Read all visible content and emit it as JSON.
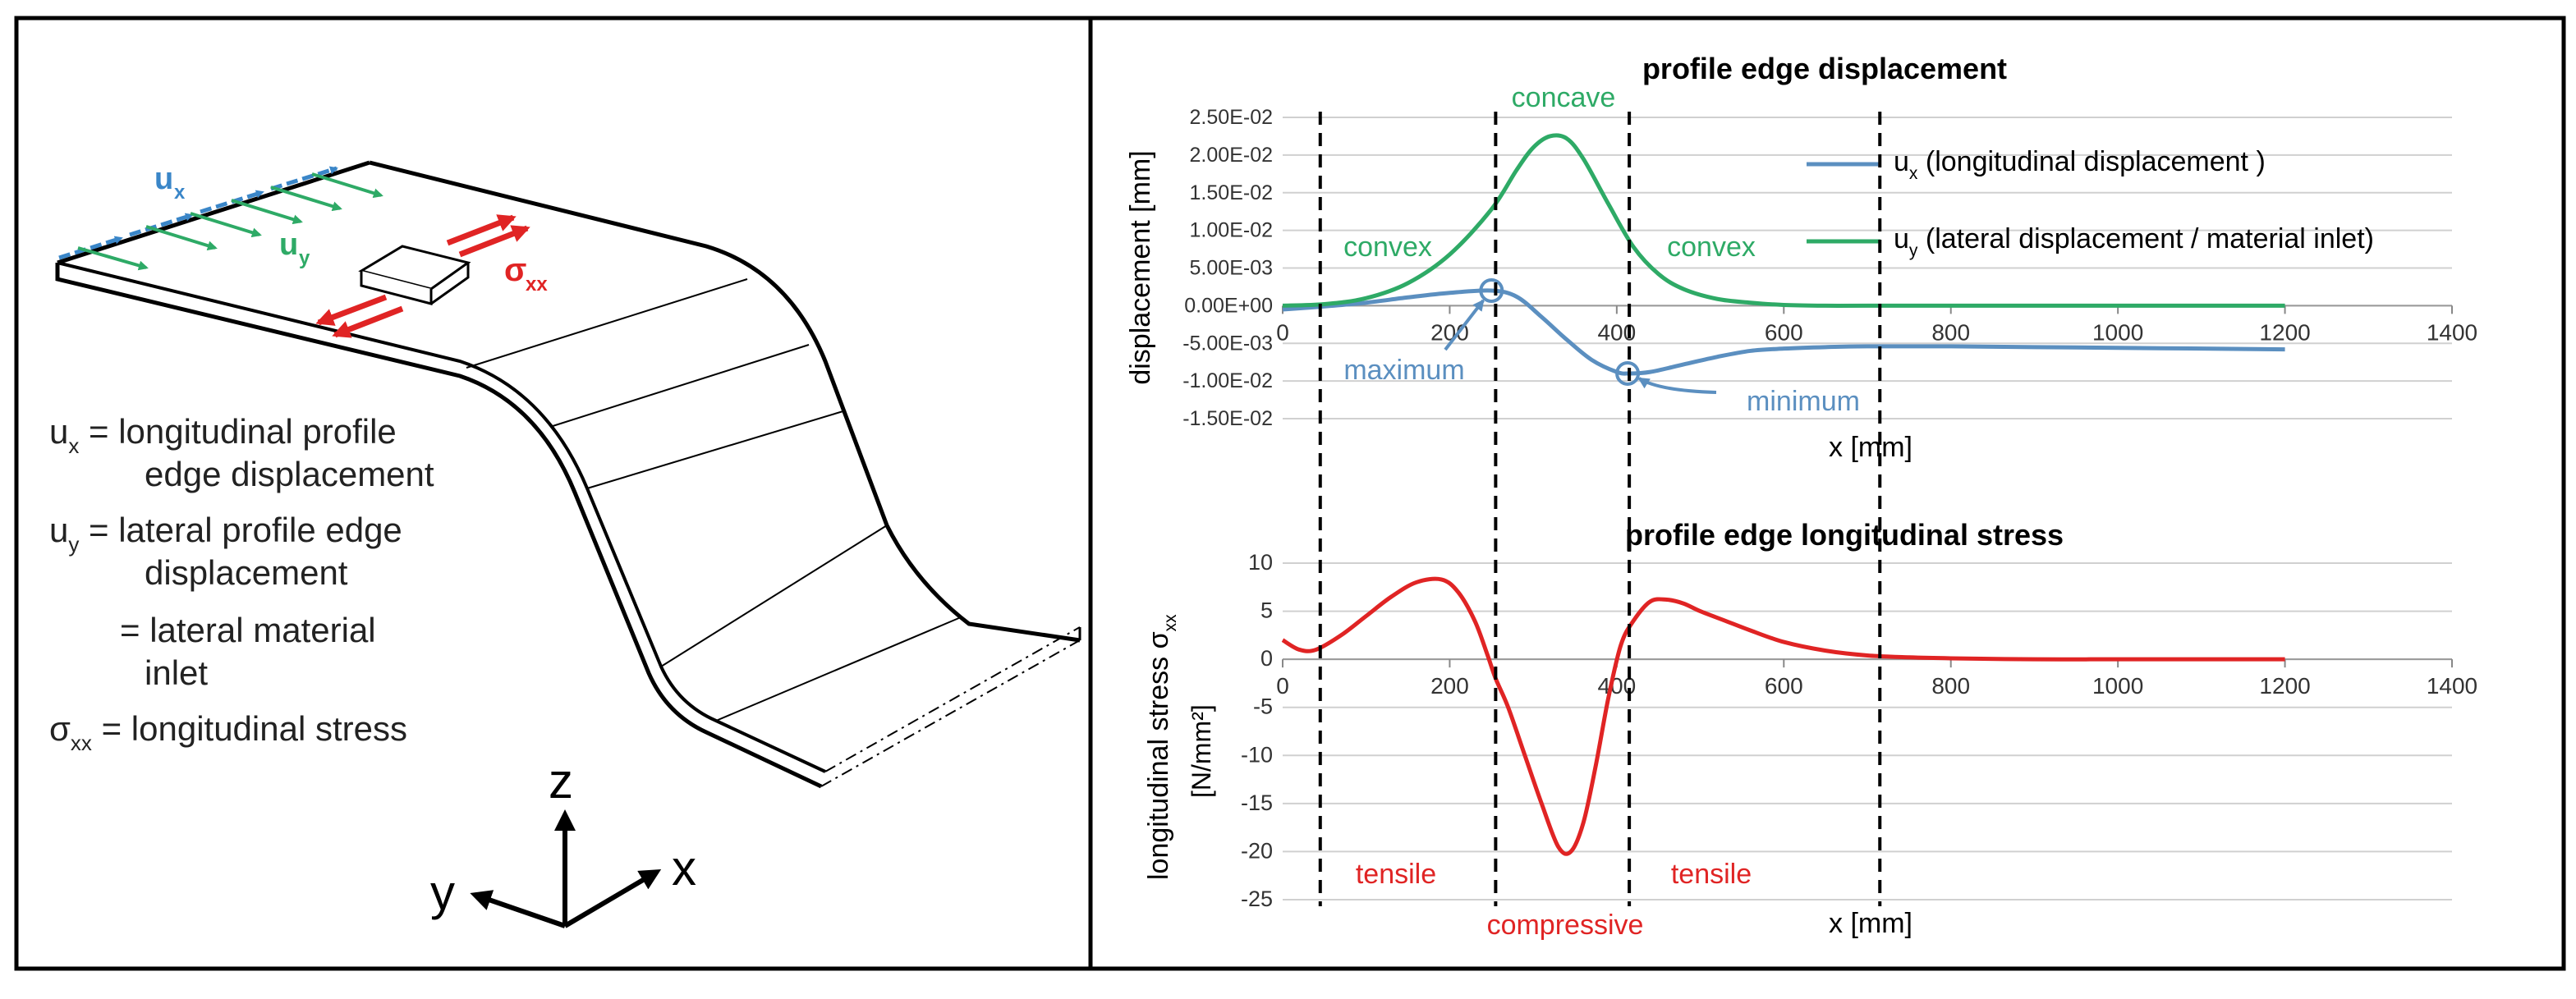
{
  "schematic": {
    "labels": {
      "ux_main": "u",
      "ux_sub": "x",
      "uy_main": "u",
      "uy_sub": "y",
      "sxx_main": "σ",
      "sxx_sub": "xx"
    },
    "legend_lines": [
      {
        "main": "u",
        "sub": "x",
        "text": " = longitudinal profile"
      },
      {
        "main": "",
        "sub": "",
        "text": "edge displacement"
      },
      {
        "main": "u",
        "sub": "y",
        "text": " = lateral profile edge"
      },
      {
        "main": "",
        "sub": "",
        "text": "displacement"
      },
      {
        "main": "",
        "sub": "",
        "text": "= lateral material"
      },
      {
        "main": "",
        "sub": "",
        "text": "inlet"
      },
      {
        "main": "σ",
        "sub": "xx",
        "text": " = longitudinal stress"
      }
    ],
    "axes": {
      "z": "z",
      "y": "y",
      "x": "x"
    }
  },
  "colors": {
    "ux": "#5b8fc0",
    "uy": "#2eaa66",
    "stress": "#e02424",
    "arrow_blue": "#3a86c8",
    "arrow_green": "#2eaa66",
    "arrow_red": "#e02424",
    "grid": "#d0d0d0",
    "frame": "#000000"
  },
  "markers": {
    "x_positions_mm": [
      45,
      255,
      415,
      715
    ]
  },
  "chart_data": [
    {
      "type": "line",
      "title": "profile edge displacement",
      "xlabel": "x [mm]",
      "ylabel": "displacement [mm]",
      "xlim": [
        0,
        1400
      ],
      "ylim": [
        -0.015,
        0.025
      ],
      "x_ticks": [
        0,
        200,
        400,
        600,
        800,
        1000,
        1200,
        1400
      ],
      "x_tick_labels": [
        "0",
        "200",
        "400",
        "600",
        "800",
        "1000",
        "1200",
        "1400"
      ],
      "y_ticks": [
        -0.015,
        -0.01,
        -0.005,
        0,
        0.005,
        0.01,
        0.015,
        0.02,
        0.025
      ],
      "y_tick_labels": [
        "-1.50E-02",
        "-1.00E-02",
        "-5.00E-03",
        "0.00E+00",
        "5.00E-03",
        "1.00E-02",
        "1.50E-02",
        "2.00E-02",
        "2.50E-02"
      ],
      "grid": true,
      "legend_position": "right",
      "series": [
        {
          "name": "u",
          "name_sub": "x",
          "name_text": "(longitudinal displacement )",
          "color_key": "ux",
          "x": [
            0,
            50,
            100,
            150,
            200,
            250,
            280,
            310,
            340,
            370,
            400,
            415,
            440,
            480,
            520,
            560,
            600,
            650,
            700,
            800,
            900,
            1000,
            1100,
            1200
          ],
          "y": [
            -0.0005,
            -0.0001,
            0.0004,
            0.0011,
            0.0017,
            0.002,
            0.0012,
            -0.0015,
            -0.0045,
            -0.0072,
            -0.0088,
            -0.009,
            -0.0088,
            -0.0078,
            -0.0068,
            -0.006,
            -0.0057,
            -0.0055,
            -0.0054,
            -0.0054,
            -0.0055,
            -0.0056,
            -0.0057,
            -0.0058
          ]
        },
        {
          "name": "u",
          "name_sub": "y",
          "name_text": "(lateral displacement / material inlet)",
          "color_key": "uy",
          "x": [
            0,
            50,
            100,
            150,
            200,
            250,
            280,
            300,
            320,
            340,
            360,
            390,
            420,
            450,
            480,
            520,
            560,
            600,
            650,
            700,
            800,
            1000,
            1200
          ],
          "y": [
            0,
            0.0002,
            0.001,
            0.003,
            0.0068,
            0.0128,
            0.018,
            0.021,
            0.0225,
            0.0222,
            0.0195,
            0.0135,
            0.0078,
            0.0042,
            0.0022,
            0.0009,
            0.0004,
            0.0001,
            0,
            0,
            0,
            0,
            0
          ]
        }
      ],
      "annotations": [
        {
          "text": "concave",
          "color_key": "uy"
        },
        {
          "text": "convex",
          "color_key": "uy"
        },
        {
          "text": "convex",
          "color_key": "uy"
        },
        {
          "text": "maximum",
          "color_key": "ux",
          "x": 250,
          "y": 0.002
        },
        {
          "text": "minimum",
          "color_key": "ux",
          "x": 413,
          "y": -0.009
        }
      ]
    },
    {
      "type": "line",
      "title": "profile edge longitudinal stress",
      "xlabel": "x [mm]",
      "ylabel": "longitudinal stress σ",
      "ylabel_sub": "xx",
      "ylabel_line2": "[N/mm²]",
      "xlim": [
        0,
        1400
      ],
      "ylim": [
        -25,
        10
      ],
      "x_ticks": [
        0,
        200,
        400,
        600,
        800,
        1000,
        1200,
        1400
      ],
      "x_tick_labels": [
        "0",
        "200",
        "400",
        "600",
        "800",
        "1000",
        "1200",
        "1400"
      ],
      "y_ticks": [
        -25,
        -20,
        -15,
        -10,
        -5,
        0,
        5,
        10
      ],
      "y_tick_labels": [
        "-25",
        "-20",
        "-15",
        "-10",
        "-5",
        "0",
        "5",
        "10"
      ],
      "grid": true,
      "series": [
        {
          "color_key": "stress",
          "x": [
            0,
            20,
            40,
            70,
            100,
            130,
            160,
            190,
            210,
            230,
            245,
            255,
            270,
            290,
            310,
            330,
            345,
            360,
            375,
            390,
            405,
            420,
            440,
            460,
            480,
            500,
            530,
            560,
            600,
            650,
            700,
            750,
            800,
            900,
            1000,
            1100,
            1200
          ],
          "y": [
            2,
            1,
            1,
            2.5,
            4.5,
            6.5,
            8,
            8.3,
            7,
            4,
            0.5,
            -2,
            -5,
            -10,
            -15,
            -19.5,
            -20,
            -17,
            -11,
            -4,
            1.5,
            4,
            6,
            6.2,
            5.8,
            5,
            4,
            3,
            1.8,
            0.9,
            0.4,
            0.2,
            0.1,
            0,
            0,
            0,
            0
          ]
        }
      ],
      "annotations": [
        {
          "text": "tensile",
          "color_key": "stress"
        },
        {
          "text": "compressive",
          "color_key": "stress"
        },
        {
          "text": "tensile",
          "color_key": "stress"
        }
      ]
    }
  ]
}
